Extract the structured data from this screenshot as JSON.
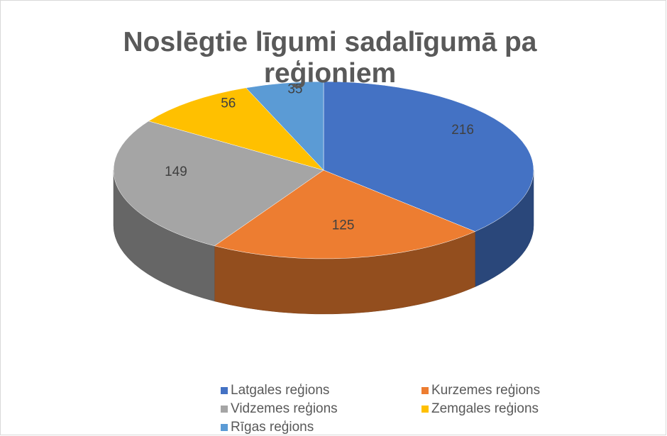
{
  "chart_data": {
    "type": "pie3d",
    "title": "Noslēgtie līgumi sadalīgumā pa reģioniem",
    "categories": [
      "Latgales reģions",
      "Kurzemes reģions",
      "Vidzemes reģions",
      "Zemgales reģions",
      "Rīgas reģions"
    ],
    "values": [
      216,
      125,
      149,
      56,
      35
    ],
    "colors": [
      "#4472c4",
      "#ed7d31",
      "#a5a5a5",
      "#ffc000",
      "#5b9bd5"
    ],
    "legend": "bottom"
  }
}
